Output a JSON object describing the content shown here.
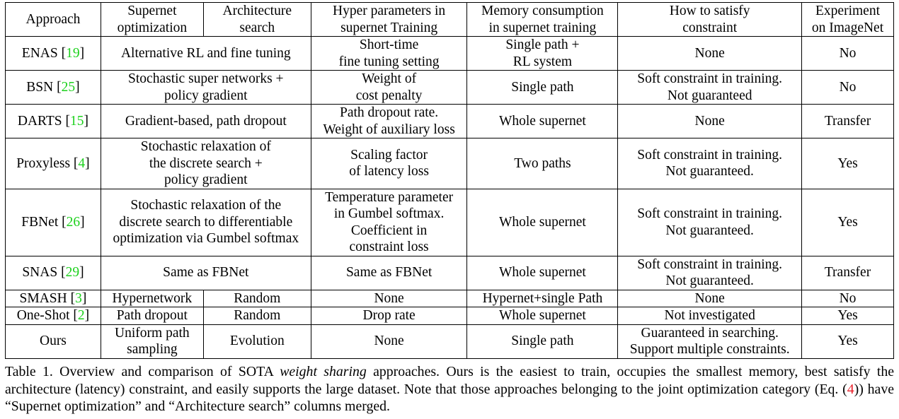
{
  "table": {
    "headers": [
      [
        "Approach"
      ],
      [
        "Supernet",
        "optimization"
      ],
      [
        "Architecture",
        "search"
      ],
      [
        "Hyper parameters in",
        "supernet Training"
      ],
      [
        "Memory consumption",
        "in supernet training"
      ],
      [
        "How to satisfy",
        "constraint"
      ],
      [
        "Experiment",
        "on ImageNet"
      ]
    ],
    "rows": [
      {
        "approach": "ENAS",
        "cite": "19",
        "joint": [
          "Alternative RL and fine tuning"
        ],
        "hyper": [
          "Short-time",
          "fine tuning setting"
        ],
        "memory": [
          "Single path +",
          "RL system"
        ],
        "constraint": [
          "None"
        ],
        "imagenet": [
          "No"
        ]
      },
      {
        "approach": "BSN",
        "cite": "25",
        "joint": [
          "Stochastic super networks +",
          "policy gradient"
        ],
        "hyper": [
          "Weight of",
          "cost penalty"
        ],
        "memory": [
          "Single path"
        ],
        "constraint": [
          "Soft constraint in training.",
          "Not guaranteed"
        ],
        "imagenet": [
          "No"
        ]
      },
      {
        "approach": "DARTS",
        "cite": "15",
        "joint": [
          "Gradient-based, path dropout"
        ],
        "hyper": [
          "Path dropout rate.",
          "Weight of auxiliary loss"
        ],
        "memory": [
          "Whole supernet"
        ],
        "constraint": [
          "None"
        ],
        "imagenet": [
          "Transfer"
        ]
      },
      {
        "approach": "Proxyless",
        "cite": "4",
        "joint": [
          "Stochastic relaxation of",
          "the discrete search +",
          "policy gradient"
        ],
        "hyper": [
          "Scaling factor",
          "of latency loss"
        ],
        "memory": [
          "Two paths"
        ],
        "constraint": [
          "Soft constraint in training.",
          "Not guaranteed."
        ],
        "imagenet": [
          "Yes"
        ]
      },
      {
        "approach": "FBNet",
        "cite": "26",
        "joint": [
          "Stochastic relaxation of the",
          "discrete search to differentiable",
          "optimization via Gumbel softmax"
        ],
        "hyper": [
          "Temperature parameter",
          "in Gumbel softmax.",
          "Coefficient in",
          "constraint loss"
        ],
        "memory": [
          "Whole supernet"
        ],
        "constraint": [
          "Soft constraint in training.",
          "Not guaranteed."
        ],
        "imagenet": [
          "Yes"
        ]
      },
      {
        "approach": "SNAS",
        "cite": "29",
        "joint": [
          "Same as FBNet"
        ],
        "hyper": [
          "Same as FBNet"
        ],
        "memory": [
          "Whole supernet"
        ],
        "constraint": [
          "Soft constraint in training.",
          "Not guaranteed."
        ],
        "imagenet": [
          "Transfer"
        ]
      },
      {
        "approach": "SMASH",
        "cite": "3",
        "supernet": [
          "Hypernetwork"
        ],
        "search": [
          "Random"
        ],
        "hyper": [
          "None"
        ],
        "memory": [
          "Hypernet+single Path"
        ],
        "constraint": [
          "None"
        ],
        "imagenet": [
          "No"
        ]
      },
      {
        "approach": "One-Shot",
        "cite": "2",
        "supernet": [
          "Path dropout"
        ],
        "search": [
          "Random"
        ],
        "hyper": [
          "Drop rate"
        ],
        "memory": [
          "Whole supernet"
        ],
        "constraint": [
          "Not investigated"
        ],
        "imagenet": [
          "Yes"
        ]
      },
      {
        "approach": "Ours",
        "cite": "",
        "supernet": [
          "Uniform path",
          "sampling"
        ],
        "search": [
          "Evolution"
        ],
        "hyper": [
          "None"
        ],
        "memory": [
          "Single path"
        ],
        "constraint": [
          "Guaranteed in searching.",
          "Support multiple constraints."
        ],
        "imagenet": [
          "Yes"
        ]
      }
    ]
  },
  "caption": {
    "label": "Table 1.",
    "part1": "Overview and comparison of SOTA",
    "emph": "weight sharing",
    "part2": "approaches.  Ours is the easiest to train, occupies the smallest memory, best satisfy the architecture (latency) constraint, and easily supports the large dataset. Note that those approaches belonging to the joint optimization category (Eq. (",
    "eq": "4",
    "part3": ")) have “Supernet optimization” and “Architecture search” columns merged."
  }
}
